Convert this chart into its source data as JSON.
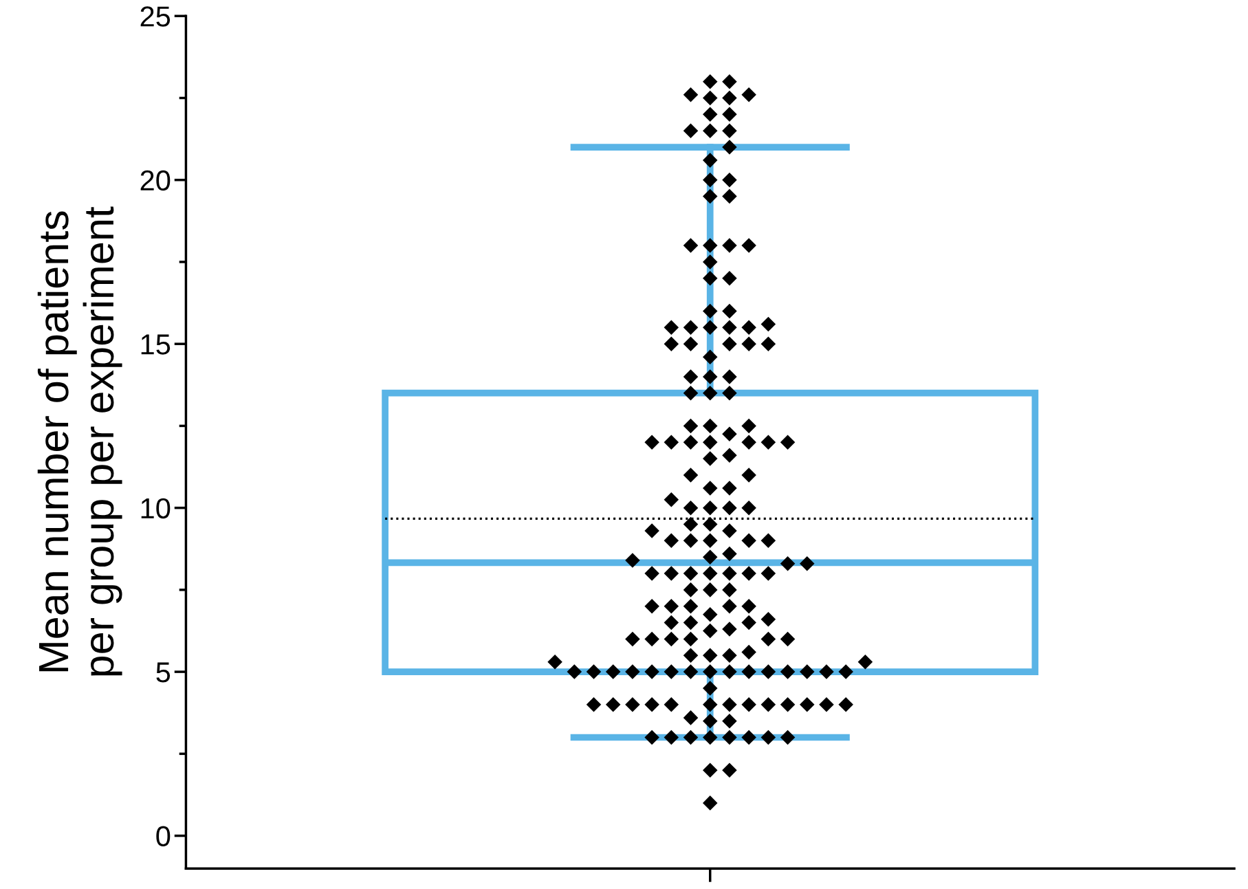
{
  "chart_data": {
    "type": "box",
    "ylabel": "Mean number of patients\nper group per experiment",
    "categories": [
      null
    ],
    "series": [
      {
        "color": "#5ab4e6",
        "boxes": [
          {
            "low": 3,
            "q1": 5,
            "median": 8.33,
            "q3": 13.5,
            "high": 21,
            "mean": 9.67
          }
        ]
      },
      {
        "type": "scatter",
        "color": "#000000",
        "marker": "diamond",
        "x": [
          null,
          null,
          null,
          null,
          null,
          null,
          null,
          null,
          null,
          null,
          null,
          null,
          null,
          null,
          null,
          null,
          null,
          null,
          null,
          null,
          null,
          null,
          null,
          null,
          null,
          null,
          null,
          null,
          null,
          null,
          null,
          null,
          null,
          null,
          null,
          null,
          null,
          null,
          null,
          null,
          null,
          null,
          null,
          null,
          null,
          null,
          null,
          null,
          null,
          null,
          null,
          null,
          null,
          null,
          null,
          null,
          null,
          null,
          null,
          null,
          null,
          null,
          null,
          null,
          null,
          null,
          null,
          null,
          null,
          null,
          null,
          null,
          null,
          null,
          null,
          null,
          null,
          null,
          null,
          null,
          null,
          null,
          null,
          null,
          null,
          null,
          null,
          null,
          null,
          null,
          null,
          null,
          null,
          null,
          null,
          null,
          null,
          null,
          null,
          null,
          null,
          null,
          null,
          null,
          null,
          null,
          null,
          null,
          null,
          null,
          null,
          null,
          null,
          null,
          null,
          null,
          null,
          null,
          null,
          null,
          null,
          null,
          null,
          null,
          null,
          null,
          null,
          null,
          null,
          null,
          null,
          null,
          null,
          null,
          null,
          null,
          null,
          null,
          null,
          null,
          null,
          null,
          null,
          null,
          null,
          null,
          null,
          null,
          null,
          null,
          null,
          null,
          null,
          null,
          null,
          null,
          null
        ],
        "values": [
          1,
          2,
          2,
          3,
          3,
          3,
          3,
          3,
          3,
          3,
          3,
          3.5,
          3.5,
          3.6,
          4,
          4,
          4,
          4,
          4,
          4,
          4,
          4,
          4,
          4,
          4,
          4,
          4,
          4.5,
          5,
          5,
          5,
          5,
          5,
          5,
          5,
          5,
          5,
          5,
          5,
          5,
          5,
          5,
          5,
          5.3,
          5.3,
          5.5,
          5.5,
          5.5,
          5.6,
          6.25,
          6.3,
          6.75,
          6,
          6,
          6,
          6,
          6,
          6,
          6.5,
          6.5,
          6.5,
          6.6,
          7,
          7,
          7,
          7,
          7,
          7.5,
          7.5,
          7.5,
          8,
          8,
          8,
          8,
          8,
          8,
          8,
          8.3,
          8.4,
          8.3,
          8.5,
          8.6,
          9,
          9,
          9,
          9,
          9,
          9.3,
          9.3,
          9.5,
          9.5,
          10,
          10,
          10,
          10,
          10.25,
          10.6,
          10.6,
          11,
          11,
          11.5,
          11.6,
          12,
          12,
          12,
          12,
          12,
          12,
          12,
          12.25,
          12.5,
          12.5,
          12.5,
          13.5,
          13.5,
          13.5,
          14,
          14,
          14,
          14.6,
          15,
          15,
          15,
          15,
          15,
          15.5,
          15.5,
          15.5,
          15.5,
          15.5,
          15.6,
          16,
          16,
          17,
          17,
          17.5,
          18,
          18,
          18,
          18,
          19.5,
          19.5,
          20,
          20,
          20.6,
          21,
          21.5,
          21.5,
          21.5,
          22,
          22,
          22.5,
          22.5,
          22.6,
          22.6,
          23,
          23
        ]
      }
    ],
    "ylim": [
      -1,
      25
    ],
    "yticks": [
      0,
      5,
      10,
      15,
      20,
      25
    ],
    "tick_labels": "y",
    "grid": false,
    "legend": false
  }
}
